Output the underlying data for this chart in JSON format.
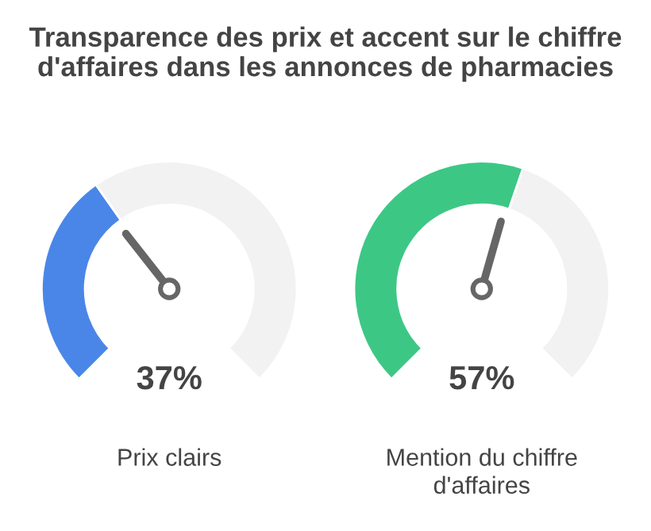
{
  "chart_data": [
    {
      "type": "donut",
      "title": "Transparence des prix et accent sur le chiffre d'affaires dans les annonces de pharmacies",
      "xlabel": "Prix clairs",
      "categories": [
        null,
        null
      ],
      "values": [
        37,
        63
      ],
      "colors": [
        "#4a86e8",
        "#f2f2f2"
      ],
      "annotations": [
        "37%"
      ]
    },
    {
      "type": "donut",
      "xlabel": "Mention du chiffre d'affaires",
      "categories": [
        null,
        null
      ],
      "values": [
        57,
        43
      ],
      "colors": [
        "#3dc785",
        "#f2f2f2"
      ],
      "annotations": [
        "57%"
      ]
    }
  ]
}
